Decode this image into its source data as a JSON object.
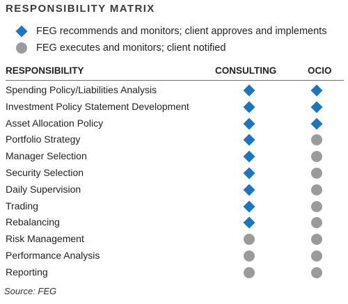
{
  "title": "RESPONSIBILITY MATRIX",
  "legend": [
    {
      "symbol": "diamond",
      "color": "#1a75c2",
      "text": "FEG recommends and monitors; client approves and implements"
    },
    {
      "symbol": "circle",
      "color": "#9b9b9b",
      "text": "FEG executes and monitors; client notified"
    }
  ],
  "columns": {
    "responsibility": "RESPONSIBILITY",
    "consulting": "CONSULTING",
    "ocio": "OCIO"
  },
  "rows": [
    {
      "label": "Spending Policy/Liabilities Analysis",
      "consulting": "diamond",
      "ocio": "diamond"
    },
    {
      "label": "Investment Policy Statement Development",
      "consulting": "diamond",
      "ocio": "diamond"
    },
    {
      "label": "Asset Allocation Policy",
      "consulting": "diamond",
      "ocio": "diamond"
    },
    {
      "label": "Portfolio Strategy",
      "consulting": "diamond",
      "ocio": "circle"
    },
    {
      "label": "Manager Selection",
      "consulting": "diamond",
      "ocio": "circle"
    },
    {
      "label": "Security Selection",
      "consulting": "diamond",
      "ocio": "circle"
    },
    {
      "label": "Daily Supervision",
      "consulting": "diamond",
      "ocio": "circle"
    },
    {
      "label": "Trading",
      "consulting": "diamond",
      "ocio": "circle"
    },
    {
      "label": "Rebalancing",
      "consulting": "diamond",
      "ocio": "circle"
    },
    {
      "label": "Risk Management",
      "consulting": "circle",
      "ocio": "circle"
    },
    {
      "label": "Performance Analysis",
      "consulting": "circle",
      "ocio": "circle"
    },
    {
      "label": "Reporting",
      "consulting": "circle",
      "ocio": "circle"
    }
  ],
  "source": "Source: FEG"
}
